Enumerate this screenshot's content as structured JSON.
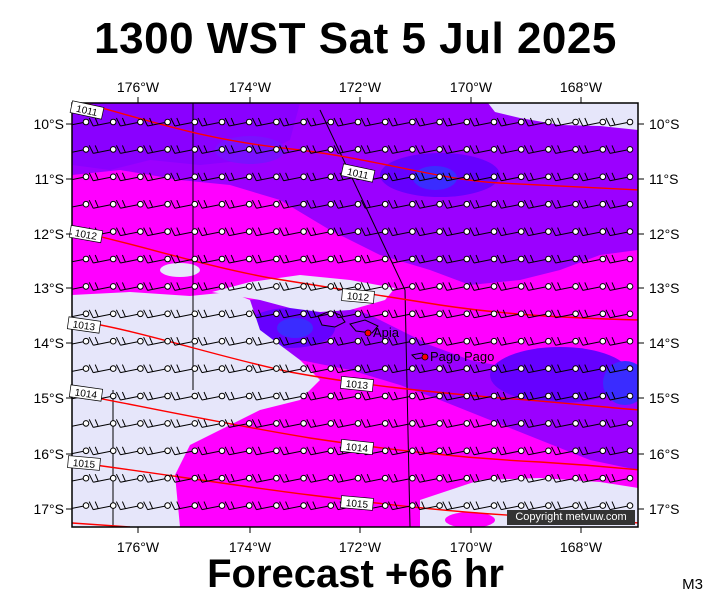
{
  "title": "1300 WST Sat 5 Jul 2025",
  "footer": "Forecast +66 hr",
  "code": "M3",
  "copyright": "Copyright metvuw.com",
  "colors": {
    "magenta": "#ff00ff",
    "violet": "#9b00ff",
    "purple": "#6600ff",
    "blue": "#3a2cff",
    "pale": "#e6e6fa",
    "isobar": "#ff0000"
  },
  "lon_labels": [
    "176°W",
    "174°W",
    "172°W",
    "170°W",
    "168°W"
  ],
  "lat_labels": [
    "10°S",
    "11°S",
    "12°S",
    "13°S",
    "14°S",
    "15°S",
    "16°S",
    "17°S"
  ],
  "isobars": [
    "1011",
    "1011",
    "1012",
    "1012",
    "1013",
    "1013",
    "1014",
    "1014",
    "1015",
    "1015"
  ],
  "places": [
    "Apia",
    "Pago Pago"
  ],
  "icons": [
    "wind-barb-icon",
    "place-marker-icon"
  ]
}
